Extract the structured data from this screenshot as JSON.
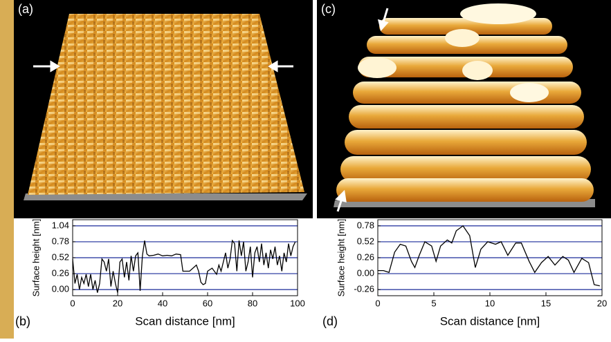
{
  "images": [
    {
      "label": "(a)"
    },
    {
      "label": "(c)"
    }
  ],
  "chart_data": [
    {
      "type": "line",
      "panel_label": "(b)",
      "ylabel": "Surface height [nm]",
      "xlabel": "Scan distance [nm]",
      "color": "#000000",
      "grid": true,
      "grid_color": "#1a2a9a",
      "xlim": [
        0,
        100
      ],
      "xticks": [
        0,
        20,
        40,
        60,
        80,
        100
      ],
      "ylim": [
        -0.1,
        1.14
      ],
      "yticks": [
        {
          "value": 0,
          "label": "0.00"
        },
        0.26,
        0.52,
        0.78,
        1.04
      ],
      "x": [
        0,
        1,
        2,
        3,
        4,
        5,
        6,
        7,
        8,
        9,
        10,
        11,
        12,
        13,
        14,
        15,
        16,
        17,
        18,
        19,
        20,
        21,
        22,
        23,
        24,
        25,
        26,
        27,
        28,
        29,
        30,
        31,
        32,
        33,
        34,
        36,
        38,
        40,
        42,
        44,
        46,
        48,
        49,
        52,
        55,
        56,
        57,
        58,
        59,
        60,
        62,
        64,
        65,
        66,
        68,
        69,
        70,
        71,
        72,
        73,
        74,
        75,
        76,
        77,
        78,
        79,
        80,
        81,
        82,
        83,
        84,
        85,
        86,
        87,
        88,
        89,
        90,
        91,
        92,
        93,
        94,
        95,
        96,
        97,
        98,
        99
      ],
      "values": [
        0.5,
        0.1,
        0.25,
        0.0,
        0.2,
        0.1,
        0.25,
        0.05,
        0.25,
        0.0,
        0.15,
        -0.05,
        0.1,
        0.5,
        0.45,
        0.3,
        0.5,
        0.05,
        0.3,
        0.1,
        -0.05,
        0.45,
        0.5,
        0.2,
        0.45,
        0.15,
        0.55,
        0.3,
        0.55,
        0.6,
        -0.02,
        0.55,
        0.8,
        0.58,
        0.55,
        0.56,
        0.58,
        0.55,
        0.56,
        0.55,
        0.58,
        0.57,
        0.3,
        0.3,
        0.4,
        0.3,
        0.12,
        0.08,
        0.1,
        0.3,
        0.35,
        0.25,
        0.4,
        0.3,
        0.6,
        0.35,
        0.5,
        0.8,
        0.75,
        0.3,
        0.8,
        0.55,
        0.78,
        0.3,
        0.45,
        0.7,
        0.2,
        0.6,
        0.7,
        0.45,
        0.75,
        0.4,
        0.6,
        0.35,
        0.65,
        0.5,
        0.7,
        0.4,
        0.55,
        0.3,
        0.6,
        0.45,
        0.75,
        0.55,
        0.7,
        0.78
      ]
    },
    {
      "type": "line",
      "panel_label": "(d)",
      "ylabel": "Surface height [nm]",
      "xlabel": "Scan distance [nm]",
      "color": "#000000",
      "grid": true,
      "grid_color": "#1a2a9a",
      "xlim": [
        0,
        20
      ],
      "xticks": [
        0,
        5,
        10,
        15,
        20
      ],
      "ylim": [
        -0.36,
        0.88
      ],
      "yticks": [
        -0.26,
        {
          "value": 0,
          "label": "0.00"
        },
        0.26,
        0.52,
        0.78
      ],
      "x": [
        0,
        0.5,
        1,
        1.5,
        2,
        2.5,
        3,
        3.3,
        3.7,
        4.2,
        4.8,
        5.2,
        5.6,
        6.2,
        6.6,
        7,
        7.6,
        8.2,
        8.7,
        9.2,
        9.8,
        10.5,
        11,
        11.6,
        12.3,
        12.8,
        13.5,
        14,
        14.6,
        15.2,
        15.8,
        16.5,
        17,
        17.5,
        18.2,
        18.8,
        19.3,
        19.8
      ],
      "values": [
        0.05,
        0.05,
        0.02,
        0.35,
        0.48,
        0.45,
        0.2,
        0.1,
        0.3,
        0.52,
        0.45,
        0.2,
        0.45,
        0.55,
        0.5,
        0.7,
        0.78,
        0.62,
        0.1,
        0.4,
        0.52,
        0.48,
        0.52,
        0.3,
        0.5,
        0.5,
        0.2,
        0.02,
        0.18,
        0.28,
        0.14,
        0.28,
        0.22,
        0.02,
        0.25,
        0.18,
        -0.18,
        -0.2
      ]
    }
  ]
}
